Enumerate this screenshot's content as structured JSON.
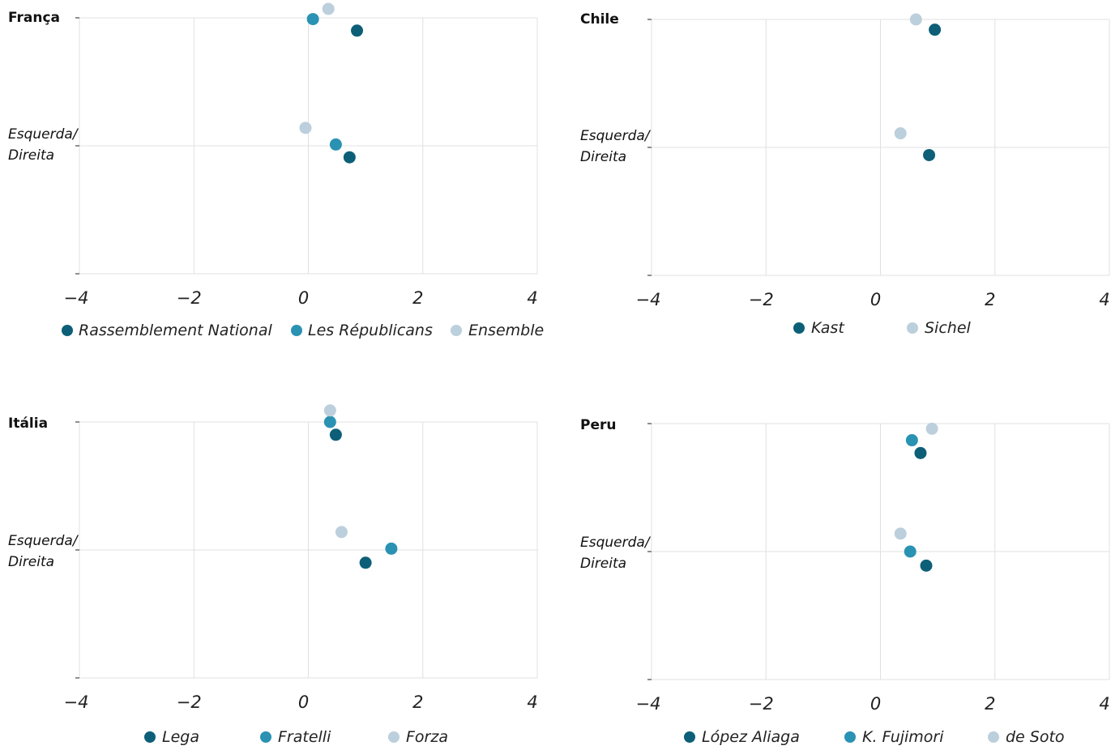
{
  "colors": {
    "dark": "#0d5f78",
    "mid": "#2a92b3",
    "light": "#bccfdc"
  },
  "chart_data": [
    {
      "type": "scatter",
      "title": "França",
      "row_label": [
        "Esquerda/",
        "Direita"
      ],
      "xlim": [
        -4,
        4
      ],
      "x_ticks": [
        "−4",
        "−2",
        "0",
        "2",
        "4"
      ],
      "grid": true,
      "legend": "bottom",
      "series": [
        {
          "name": "Rassemblement National",
          "color": "dark",
          "points": [
            {
              "x": 0.85,
              "y": 0.9
            },
            {
              "x": 0.72,
              "y": -0.09
            }
          ]
        },
        {
          "name": "Les Républicans",
          "color": "mid",
          "points": [
            {
              "x": 0.08,
              "y": 0.99
            },
            {
              "x": 0.48,
              "y": 0.01
            }
          ]
        },
        {
          "name": "Ensemble",
          "color": "light",
          "points": [
            {
              "x": 0.35,
              "y": 1.07
            },
            {
              "x": -0.05,
              "y": 0.14
            }
          ]
        }
      ]
    },
    {
      "type": "scatter",
      "title": "Chile",
      "row_label": [
        "Esquerda/",
        "Direita"
      ],
      "xlim": [
        -4,
        4
      ],
      "x_ticks": [
        "−4",
        "−2",
        "0",
        "2",
        "4"
      ],
      "grid": true,
      "legend": "bottom",
      "series": [
        {
          "name": "Kast",
          "color": "dark",
          "points": [
            {
              "x": 0.95,
              "y": 0.92
            },
            {
              "x": 0.85,
              "y": -0.06
            }
          ]
        },
        {
          "name": "Sichel",
          "color": "light",
          "points": [
            {
              "x": 0.62,
              "y": 1.0
            },
            {
              "x": 0.35,
              "y": 0.11
            }
          ]
        }
      ]
    },
    {
      "type": "scatter",
      "title": "Itália",
      "row_label": [
        "Esquerda/",
        "Direita"
      ],
      "xlim": [
        -4,
        4
      ],
      "x_ticks": [
        "−4",
        "−2",
        "0",
        "2",
        "4"
      ],
      "grid": true,
      "legend": "bottom",
      "series": [
        {
          "name": "Lega",
          "color": "dark",
          "points": [
            {
              "x": 0.48,
              "y": 0.9
            },
            {
              "x": 1.0,
              "y": -0.1
            }
          ]
        },
        {
          "name": "Fratelli",
          "color": "mid",
          "points": [
            {
              "x": 0.38,
              "y": 1.0
            },
            {
              "x": 1.45,
              "y": 0.01
            }
          ]
        },
        {
          "name": "Forza",
          "color": "light",
          "points": [
            {
              "x": 0.38,
              "y": 1.09
            },
            {
              "x": 0.58,
              "y": 0.14
            }
          ]
        }
      ]
    },
    {
      "type": "scatter",
      "title": "Peru",
      "row_label": [
        "Esquerda/",
        "Direita"
      ],
      "xlim": [
        -4,
        4
      ],
      "x_ticks": [
        "−4",
        "−2",
        "0",
        "2",
        "4"
      ],
      "grid": true,
      "legend": "bottom",
      "series": [
        {
          "name": "López Aliaga",
          "color": "dark",
          "points": [
            {
              "x": 0.7,
              "y": 0.77
            },
            {
              "x": 0.8,
              "y": -0.11
            }
          ]
        },
        {
          "name": "K. Fujimori",
          "color": "mid",
          "points": [
            {
              "x": 0.55,
              "y": 0.87
            },
            {
              "x": 0.52,
              "y": 0.0
            }
          ]
        },
        {
          "name": "de Soto",
          "color": "light",
          "points": [
            {
              "x": 0.9,
              "y": 0.96
            },
            {
              "x": 0.35,
              "y": 0.14
            }
          ]
        }
      ]
    }
  ]
}
